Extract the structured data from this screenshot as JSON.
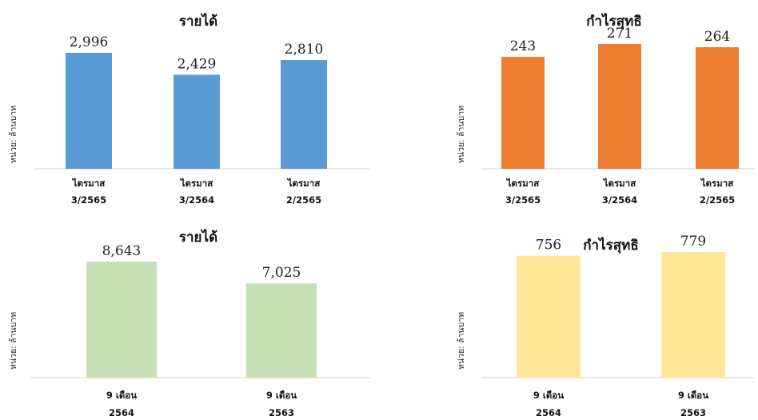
{
  "chart_data": [
    {
      "type": "bar",
      "title": "รายได้",
      "ylabel": "หน่วย: ล้านบาท",
      "categories": [
        [
          "ไตรมาส",
          "3/2565"
        ],
        [
          "ไตรมาส",
          "3/2564"
        ],
        [
          "ไตรมาส",
          "2/2565"
        ]
      ],
      "values": [
        2996,
        2429,
        2810
      ],
      "value_labels": [
        "2,996",
        "2,429",
        "2,810"
      ],
      "color": "#5B9BD5",
      "ylim": [
        0,
        2996
      ]
    },
    {
      "type": "bar",
      "title": "กำไรสุทธิ",
      "ylabel": "หน่วย: ล้านบาท",
      "categories": [
        [
          "ไตรมาส",
          "3/2565"
        ],
        [
          "ไตรมาส",
          "3/2564"
        ],
        [
          "ไตรมาส",
          "2/2565"
        ]
      ],
      "values": [
        243,
        271,
        264
      ],
      "value_labels": [
        "243",
        "271",
        "264"
      ],
      "color": "#ED7D31",
      "ylim": [
        0,
        271
      ]
    },
    {
      "type": "bar",
      "title": "รายได้",
      "ylabel": "หน่วย: ล้านบาท",
      "categories": [
        [
          "9 เดือน",
          "2564"
        ],
        [
          "9 เดือน",
          "2563"
        ]
      ],
      "values": [
        8643,
        7025
      ],
      "value_labels": [
        "8,643",
        "7,025"
      ],
      "color": "#C5E0B4",
      "ylim": [
        0,
        8643
      ]
    },
    {
      "type": "bar",
      "title": "กำไรสุทธิ",
      "ylabel": "หน่วย: ล้านบาท",
      "categories": [
        [
          "9 เดือน",
          "2564"
        ],
        [
          "9 เดือน",
          "2563"
        ]
      ],
      "values": [
        756,
        779
      ],
      "value_labels": [
        "756",
        "779"
      ],
      "color": "#FFE699",
      "ylim": [
        0,
        779
      ]
    }
  ]
}
